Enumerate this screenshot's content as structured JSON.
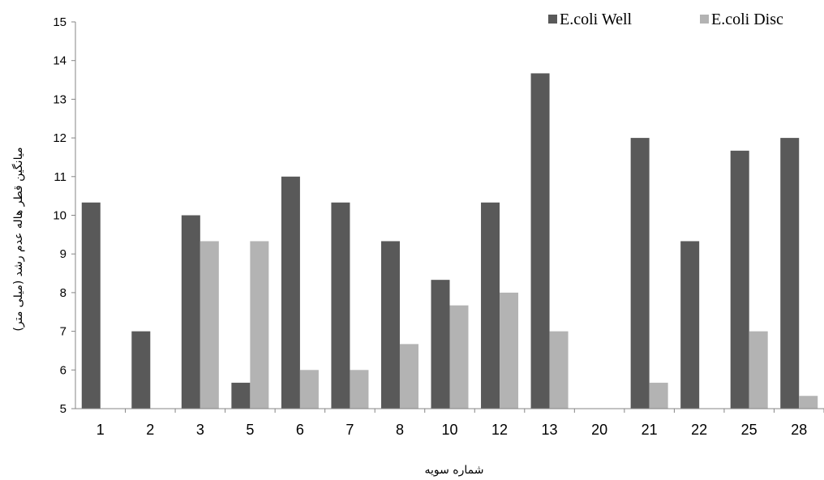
{
  "chart_data": {
    "type": "bar",
    "title": "",
    "xlabel": "شماره سویه",
    "ylabel": "میانگین قطر هاله عدم رشد (میلی متر)",
    "ylim": [
      5,
      15
    ],
    "yticks": [
      5,
      6,
      7,
      8,
      9,
      10,
      11,
      12,
      13,
      14,
      15
    ],
    "categories": [
      "1",
      "2",
      "3",
      "5",
      "6",
      "7",
      "8",
      "10",
      "12",
      "13",
      "20",
      "21",
      "22",
      "25",
      "28"
    ],
    "series": [
      {
        "name": "E.coli Well",
        "color": "#595959",
        "values": [
          10.33,
          7.0,
          10.0,
          5.67,
          11.0,
          10.33,
          9.33,
          8.33,
          10.33,
          13.67,
          5.0,
          12.0,
          9.33,
          11.67,
          12.0
        ]
      },
      {
        "name": "E.coli Disc",
        "color": "#b3b3b3",
        "values": [
          5.0,
          5.0,
          9.33,
          9.33,
          6.0,
          6.0,
          6.67,
          7.67,
          8.0,
          7.0,
          5.0,
          5.67,
          5.0,
          7.0,
          5.33
        ]
      }
    ],
    "grid": false,
    "legend_position": "top-right"
  }
}
